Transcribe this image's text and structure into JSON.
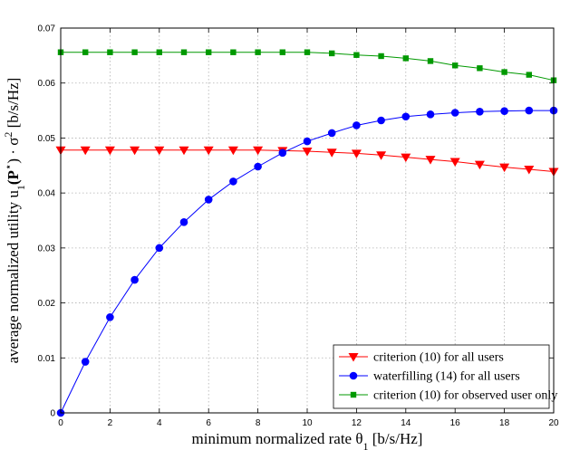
{
  "chart_data": {
    "type": "line",
    "xlabel": "minimum normalized rate θ",
    "xlabel_sub": "1",
    "xlabel_unit": " [b/s/Hz]",
    "ylabel_pre": "average normalized utility u",
    "ylabel_sub": "1",
    "ylabel_mid": "(P",
    "ylabel_sup1": "⋆",
    "ylabel_post": ") · σ",
    "ylabel_sup2": "2",
    "ylabel_unit": " [b/s/Hz]",
    "xlim": [
      0,
      20
    ],
    "ylim": [
      0,
      0.07
    ],
    "xticks": [
      "0",
      "2",
      "4",
      "6",
      "8",
      "10",
      "12",
      "14",
      "16",
      "18",
      "20"
    ],
    "yticks": [
      "0",
      "0.01",
      "0.02",
      "0.03",
      "0.04",
      "0.05",
      "0.06",
      "0.07"
    ],
    "grid": true,
    "legend_position": "bottom-right",
    "x": [
      0,
      1,
      2,
      3,
      4,
      5,
      6,
      7,
      8,
      9,
      10,
      11,
      12,
      13,
      14,
      15,
      16,
      17,
      18,
      19,
      20
    ],
    "series": [
      {
        "name": "criterion (10) for all users",
        "color": "#ff0000",
        "marker": "triangle-down",
        "values": [
          0.0478,
          0.0478,
          0.0478,
          0.0478,
          0.0478,
          0.0478,
          0.0478,
          0.0478,
          0.0478,
          0.0477,
          0.0476,
          0.0474,
          0.0472,
          0.0469,
          0.0465,
          0.0461,
          0.0457,
          0.0452,
          0.0447,
          0.0443,
          0.0439
        ]
      },
      {
        "name": "waterfilling (14) for all users",
        "color": "#0000ff",
        "marker": "circle",
        "values": [
          0.0,
          0.0093,
          0.0174,
          0.0242,
          0.03,
          0.0347,
          0.0388,
          0.0421,
          0.0448,
          0.0473,
          0.0494,
          0.0509,
          0.0523,
          0.0532,
          0.0539,
          0.0543,
          0.0546,
          0.0548,
          0.0549,
          0.055,
          0.055
        ]
      },
      {
        "name": "criterion (10) for observed user only",
        "color": "#009900",
        "marker": "square",
        "values": [
          0.0656,
          0.0656,
          0.0656,
          0.0656,
          0.0656,
          0.0656,
          0.0656,
          0.0656,
          0.0656,
          0.0656,
          0.0656,
          0.0654,
          0.0651,
          0.0649,
          0.0645,
          0.064,
          0.0632,
          0.0627,
          0.062,
          0.0615,
          0.0605
        ]
      }
    ]
  }
}
